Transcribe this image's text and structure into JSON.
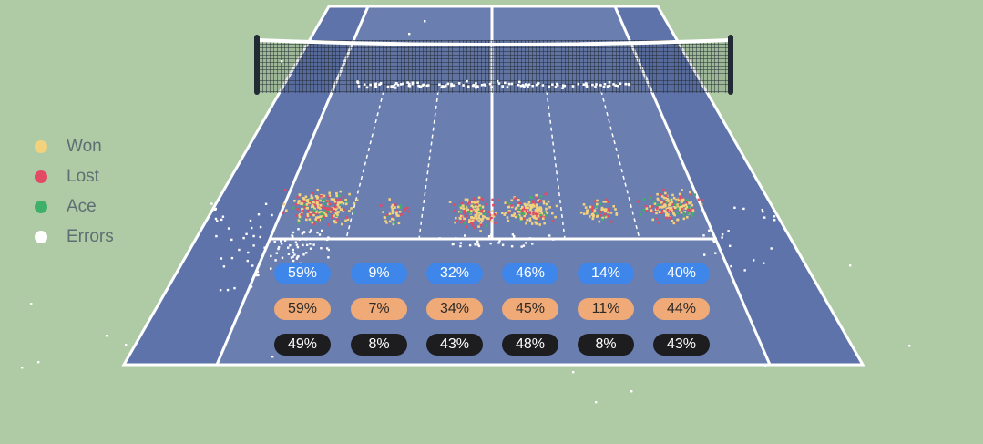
{
  "chart_data": {
    "type": "scatter",
    "legend": {
      "placement": "left",
      "items": [
        {
          "label": "Won",
          "color": "#f3d27e"
        },
        {
          "label": "Lost",
          "color": "#e34a64"
        },
        {
          "label": "Ace",
          "color": "#3eb06a"
        },
        {
          "label": "Errors",
          "color": "#ffffff"
        }
      ]
    },
    "zone_stats": [
      {
        "values": [
          "59%",
          "9%",
          "32%",
          "46%",
          "14%",
          "40%"
        ],
        "color": "#3f86ea"
      },
      {
        "values": [
          "59%",
          "7%",
          "34%",
          "45%",
          "11%",
          "44%"
        ],
        "color": "#efaa78"
      },
      {
        "values": [
          "49%",
          "8%",
          "43%",
          "48%",
          "8%",
          "43%"
        ],
        "color": "#1d1d1f"
      }
    ],
    "colors": {
      "court": "#6b80b0",
      "court_outer": "#5e73aa",
      "surround": "#afcba6",
      "lines": "#ffffff",
      "net_post": "#222a33"
    }
  }
}
